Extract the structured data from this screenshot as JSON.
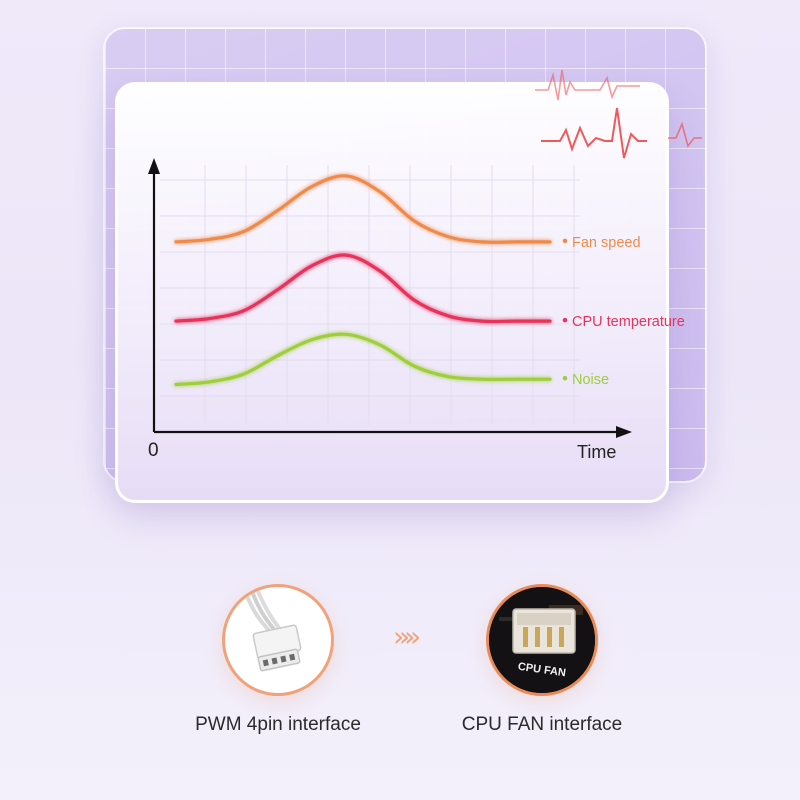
{
  "chart_data": {
    "type": "line",
    "x_label": "Time",
    "y_label": "",
    "origin_label": "0",
    "grid": true,
    "series": [
      {
        "name": "Fan speed",
        "color": "#f08a4b",
        "values": [
          0.72,
          0.73,
          0.76,
          0.84,
          0.93,
          0.97,
          0.91,
          0.8,
          0.74,
          0.72,
          0.72,
          0.72
        ]
      },
      {
        "name": "CPU temperature",
        "color": "#e8335a",
        "values": [
          0.42,
          0.43,
          0.46,
          0.54,
          0.63,
          0.67,
          0.61,
          0.5,
          0.44,
          0.42,
          0.42,
          0.42
        ]
      },
      {
        "name": "Noise",
        "color": "#9fce3a",
        "values": [
          0.18,
          0.19,
          0.22,
          0.29,
          0.35,
          0.37,
          0.33,
          0.25,
          0.21,
          0.2,
          0.2,
          0.2
        ]
      }
    ]
  },
  "interfaces": {
    "left_label": "PWM 4pin interface",
    "right_label": "CPU FAN interface",
    "header_text": "CPU FAN",
    "connector_icon": "fan-connector-icon",
    "header_icon": "motherboard-header-icon",
    "arrow_icon": "double-chevron-right-icon"
  },
  "colors": {
    "accent": "#f0a27a",
    "heartbeat": "#ee5a5a"
  }
}
